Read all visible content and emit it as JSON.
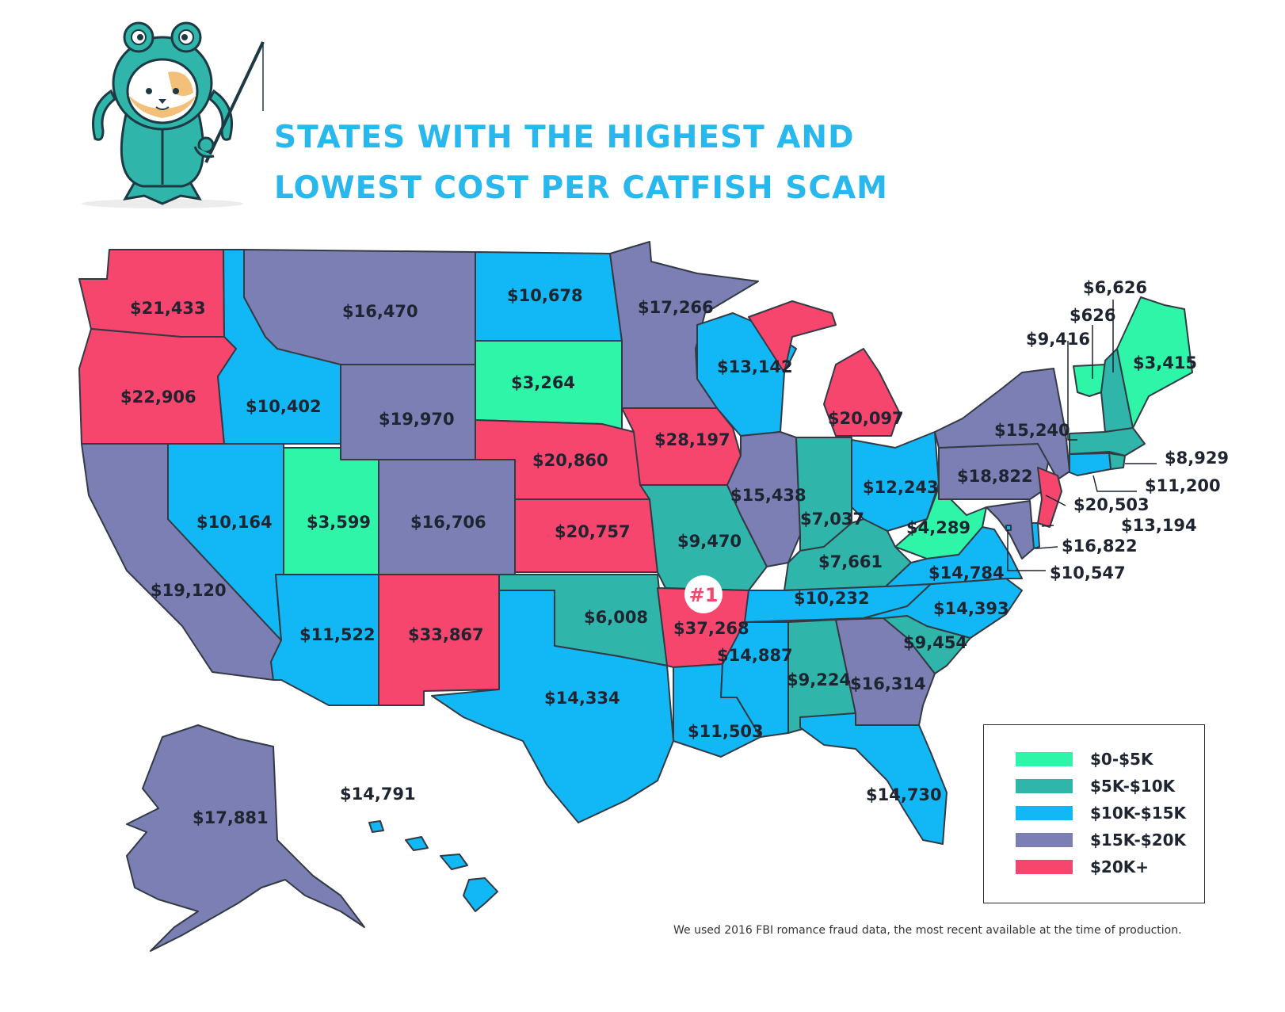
{
  "title_lines": [
    "STATES WITH THE HIGHEST AND",
    "LOWEST COST PER CATFISH SCAM"
  ],
  "footnote": "We used 2016 FBI romance fraud data, the most recent available at the time of production.",
  "rank_badge": "#1",
  "colors": {
    "bin_0_5k": "#2ff5a8",
    "bin_5k_10k": "#2fb5aa",
    "bin_10k_15k": "#12b8f5",
    "bin_15k_20k": "#7b7fb4",
    "bin_20k_plus": "#f7466e",
    "title": "#29b8ee",
    "badge": "#f7466e"
  },
  "legend": [
    {
      "label": "$0-$5K",
      "color": "#2ff5a8"
    },
    {
      "label": "$5K-$10K",
      "color": "#2fb5aa"
    },
    {
      "label": "$10K-$15K",
      "color": "#12b8f5"
    },
    {
      "label": "$15K-$20K",
      "color": "#7b7fb4"
    },
    {
      "label": "$20K+",
      "color": "#f7466e"
    }
  ],
  "states": {
    "WA": "$21,433",
    "OR": "$22,906",
    "CA": "$19,120",
    "NV": "$10,164",
    "ID": "$10,402",
    "MT": "$16,470",
    "WY": "$19,970",
    "UT": "$3,599",
    "CO": "$16,706",
    "AZ": "$11,522",
    "NM": "$33,867",
    "ND": "$10,678",
    "SD": "$3,264",
    "NE": "$20,860",
    "KS": "$20,757",
    "OK": "$6,008",
    "TX": "$14,334",
    "MN": "$17,266",
    "IA": "$28,197",
    "MO": "$9,470",
    "AR": "$37,268",
    "LA": "$11,503",
    "WI": "$13,142",
    "IL": "$15,438",
    "MS": "$14,887",
    "MI": "$20,097",
    "IN": "$7,037",
    "OH": "$12,243",
    "KY": "$7,661",
    "TN": "$10,232",
    "AL": "$9,224",
    "GA": "$16,314",
    "FL": "$14,730",
    "SC": "$9,454",
    "NC": "$14,393",
    "VA": "$14,784",
    "WV": "$4,289",
    "PA": "$18,822",
    "NY": "$15,240",
    "VT": "$626",
    "NH": "$6,626",
    "ME": "$3,415",
    "MA": "$8,929",
    "RI": "$9,416",
    "CT": "$11,200",
    "NJ": "$20,503",
    "DE": "$13,194",
    "MD": "$16,822",
    "DC": "$10,547",
    "AK": "$17,881",
    "HI": "$14,791"
  }
}
